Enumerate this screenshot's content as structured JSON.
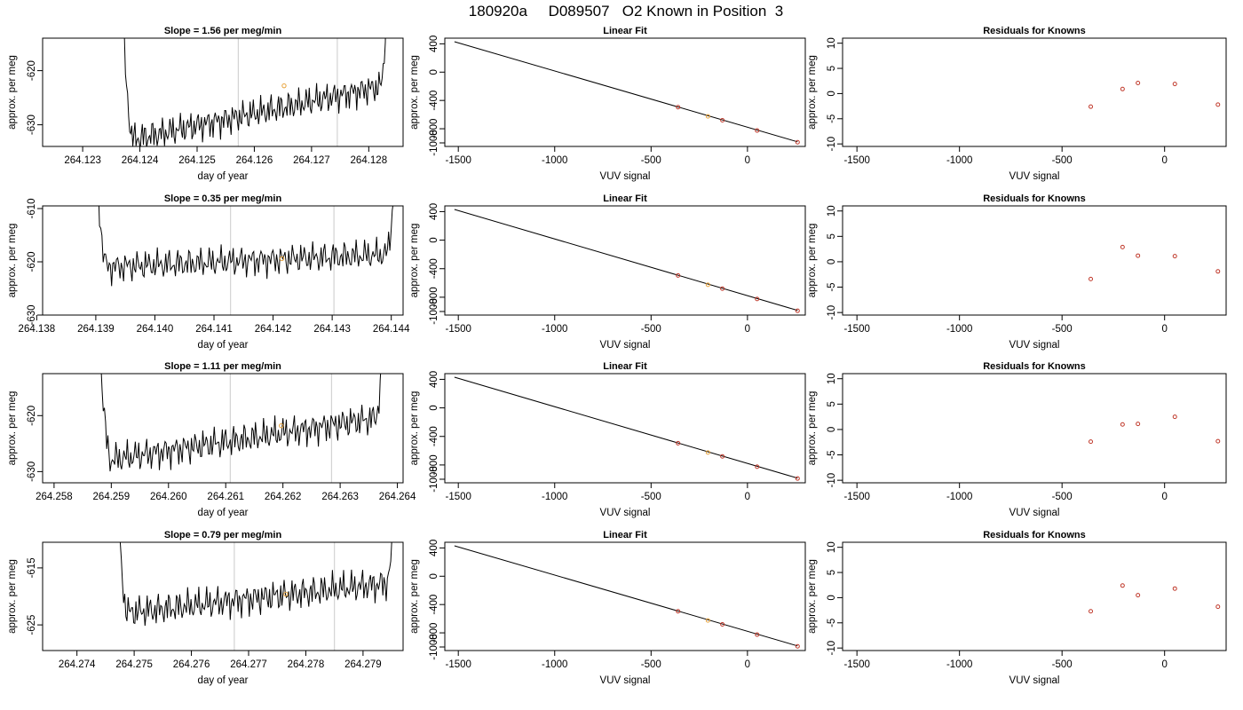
{
  "figure_title": "180920a     D089507   O2 Known in Position  3",
  "colors": {
    "line": "#000000",
    "vline": "#d3d3d3",
    "point": "#e8a33c",
    "fit_point": "#c0392b",
    "residual": "#c0392b"
  },
  "chart_data": [
    {
      "row": 1,
      "timeseries": {
        "type": "line",
        "title": "Slope =  1.56  per meg/min",
        "xlabel": "day of year",
        "ylabel": "approx. per meg",
        "xlim": [
          264.1223,
          264.1286
        ],
        "ylim": [
          -634,
          -614
        ],
        "xticks": [
          "264.123",
          "264.124",
          "264.125",
          "264.126",
          "264.127",
          "264.128"
        ],
        "xtick_values": [
          264.123,
          264.124,
          264.125,
          264.126,
          264.127,
          264.128
        ],
        "yticks": [
          "-630",
          "-620"
        ],
        "ytick_values": [
          -630,
          -620
        ],
        "data_start": 264.1236,
        "data_end": 264.1284,
        "flat_start": 264.1239,
        "flat_end": 264.1282,
        "center": -627.8,
        "slope_per_day": 2246.4,
        "vlines": [
          264.12572,
          264.12745
        ],
        "marker": {
          "x": 264.12652,
          "y": -622.8
        }
      },
      "fit": {
        "type": "line",
        "title": "Linear Fit",
        "xlabel": "VUV signal",
        "ylabel": "approx. per meg",
        "xlim": [
          -1570,
          300
        ],
        "ylim": [
          -1050,
          480
        ],
        "xticks": [
          "-1500",
          "-1000",
          "-500",
          "0"
        ],
        "xtick_values": [
          -1500,
          -1000,
          -500,
          0
        ],
        "yticks": [
          "-1000",
          "-800",
          "-400",
          "0",
          "400"
        ],
        "ytick_values": [
          -1000,
          -800,
          -400,
          0,
          400
        ],
        "line": {
          "x": [
            -1520,
            260
          ],
          "y": [
            430,
            -985
          ]
        },
        "points": [
          {
            "x": -360,
            "y": -495
          },
          {
            "x": -205,
            "y": -625,
            "highlight": true
          },
          {
            "x": -130,
            "y": -680
          },
          {
            "x": 50,
            "y": -825
          },
          {
            "x": 260,
            "y": -990
          }
        ]
      },
      "residuals": {
        "type": "scatter",
        "title": "Residuals for Knowns",
        "xlabel": "VUV signal",
        "ylabel": "approx. per meg",
        "xlim": [
          -1570,
          300
        ],
        "ylim": [
          -10.5,
          11
        ],
        "xticks": [
          "-1500",
          "-1000",
          "-500",
          "0"
        ],
        "xtick_values": [
          -1500,
          -1000,
          -500,
          0
        ],
        "yticks": [
          "-10",
          "-5",
          "0",
          "5",
          "10"
        ],
        "ytick_values": [
          -10,
          -5,
          0,
          5,
          10
        ],
        "x": [
          -360,
          -205,
          -130,
          50,
          260
        ],
        "y": [
          -2.6,
          0.9,
          2.1,
          1.9,
          -2.2
        ]
      }
    },
    {
      "row": 2,
      "timeseries": {
        "type": "line",
        "title": "Slope =  0.35  per meg/min",
        "xlabel": "day of year",
        "ylabel": "approx. per meg",
        "xlim": [
          264.1381,
          264.1442
        ],
        "ylim": [
          -630,
          -609.5
        ],
        "xticks": [
          "264.138",
          "264.139",
          "264.140",
          "264.141",
          "264.142",
          "264.143",
          "264.144"
        ],
        "xtick_values": [
          264.138,
          264.139,
          264.14,
          264.141,
          264.142,
          264.143,
          264.144
        ],
        "yticks": [
          "-630",
          "-620",
          "-610"
        ],
        "ytick_values": [
          -630,
          -620,
          -610
        ],
        "data_start": 264.1389,
        "data_end": 264.1442,
        "flat_start": 264.1392,
        "flat_end": 264.1439,
        "center": -619.8,
        "slope_per_day": 504,
        "vlines": [
          264.14128,
          264.14303
        ],
        "marker": {
          "x": 264.14215,
          "y": -619.4
        }
      },
      "fit": {
        "type": "line",
        "title": "Linear Fit",
        "xlabel": "VUV signal",
        "ylabel": "approx. per meg",
        "xlim": [
          -1570,
          300
        ],
        "ylim": [
          -1050,
          480
        ],
        "xticks": [
          "-1500",
          "-1000",
          "-500",
          "0"
        ],
        "xtick_values": [
          -1500,
          -1000,
          -500,
          0
        ],
        "yticks": [
          "-1000",
          "-800",
          "-400",
          "0",
          "400"
        ],
        "ytick_values": [
          -1000,
          -800,
          -400,
          0,
          400
        ],
        "line": {
          "x": [
            -1520,
            260
          ],
          "y": [
            430,
            -985
          ]
        },
        "points": [
          {
            "x": -360,
            "y": -495
          },
          {
            "x": -205,
            "y": -625,
            "highlight": true
          },
          {
            "x": -130,
            "y": -680
          },
          {
            "x": 50,
            "y": -825
          },
          {
            "x": 260,
            "y": -990
          }
        ]
      },
      "residuals": {
        "type": "scatter",
        "title": "Residuals for Knowns",
        "xlabel": "VUV signal",
        "ylabel": "approx. per meg",
        "xlim": [
          -1570,
          300
        ],
        "ylim": [
          -10.5,
          11
        ],
        "xticks": [
          "-1500",
          "-1000",
          "-500",
          "0"
        ],
        "xtick_values": [
          -1500,
          -1000,
          -500,
          0
        ],
        "yticks": [
          "-10",
          "-5",
          "0",
          "5",
          "10"
        ],
        "ytick_values": [
          -10,
          -5,
          0,
          5,
          10
        ],
        "x": [
          -360,
          -205,
          -130,
          50,
          260
        ],
        "y": [
          -3.4,
          2.9,
          1.2,
          1.1,
          -1.9
        ]
      }
    },
    {
      "row": 3,
      "timeseries": {
        "type": "line",
        "title": "Slope =  1.11  per meg/min",
        "xlabel": "day of year",
        "ylabel": "approx. per meg",
        "xlim": [
          264.2578,
          264.2641
        ],
        "ylim": [
          -632,
          -612.5
        ],
        "xticks": [
          "264.258",
          "264.259",
          "264.260",
          "264.261",
          "264.262",
          "264.263",
          "264.264"
        ],
        "xtick_values": [
          264.258,
          264.259,
          264.26,
          264.261,
          264.262,
          264.263,
          264.264
        ],
        "yticks": [
          "-630",
          "-620"
        ],
        "ytick_values": [
          -630,
          -620
        ],
        "data_start": 264.2587,
        "data_end": 264.2639,
        "flat_start": 264.259,
        "flat_end": 264.2636,
        "center": -624.2,
        "slope_per_day": 1598.4,
        "vlines": [
          264.26108,
          264.26285
        ],
        "marker": {
          "x": 264.26197,
          "y": -621.8
        }
      },
      "fit": {
        "type": "line",
        "title": "Linear Fit",
        "xlabel": "VUV signal",
        "ylabel": "approx. per meg",
        "xlim": [
          -1570,
          300
        ],
        "ylim": [
          -1050,
          480
        ],
        "xticks": [
          "-1500",
          "-1000",
          "-500",
          "0"
        ],
        "xtick_values": [
          -1500,
          -1000,
          -500,
          0
        ],
        "yticks": [
          "-1000",
          "-800",
          "-400",
          "0",
          "400"
        ],
        "ytick_values": [
          -1000,
          -800,
          -400,
          0,
          400
        ],
        "line": {
          "x": [
            -1520,
            260
          ],
          "y": [
            430,
            -985
          ]
        },
        "points": [
          {
            "x": -360,
            "y": -495
          },
          {
            "x": -205,
            "y": -625,
            "highlight": true
          },
          {
            "x": -130,
            "y": -680
          },
          {
            "x": 50,
            "y": -825
          },
          {
            "x": 260,
            "y": -990
          }
        ]
      },
      "residuals": {
        "type": "scatter",
        "title": "Residuals for Knowns",
        "xlabel": "VUV signal",
        "ylabel": "approx. per meg",
        "xlim": [
          -1570,
          300
        ],
        "ylim": [
          -10.5,
          11
        ],
        "xticks": [
          "-1500",
          "-1000",
          "-500",
          "0"
        ],
        "xtick_values": [
          -1500,
          -1000,
          -500,
          0
        ],
        "yticks": [
          "-10",
          "-5",
          "0",
          "5",
          "10"
        ],
        "ytick_values": [
          -10,
          -5,
          0,
          5,
          10
        ],
        "x": [
          -360,
          -205,
          -130,
          50,
          260
        ],
        "y": [
          -2.4,
          1.0,
          1.1,
          2.5,
          -2.3
        ]
      }
    },
    {
      "row": 4,
      "timeseries": {
        "type": "line",
        "title": "Slope =  0.79  per meg/min",
        "xlabel": "day of year",
        "ylabel": "approx. per meg",
        "xlim": [
          264.2734,
          264.2797
        ],
        "ylim": [
          -629.5,
          -610.5
        ],
        "xticks": [
          "264.274",
          "264.275",
          "264.276",
          "264.277",
          "264.278",
          "264.279"
        ],
        "xtick_values": [
          264.274,
          264.275,
          264.276,
          264.277,
          264.278,
          264.279
        ],
        "yticks": [
          "-625",
          "-615"
        ],
        "ytick_values": [
          -625,
          -615
        ],
        "data_start": 264.2746,
        "data_end": 264.2797,
        "flat_start": 264.2749,
        "flat_end": 264.2794,
        "center": -620.3,
        "slope_per_day": 1137.6,
        "vlines": [
          264.27675,
          264.2785
        ],
        "marker": {
          "x": 264.27765,
          "y": -619.6
        }
      },
      "fit": {
        "type": "line",
        "title": "Linear Fit",
        "xlabel": "VUV signal",
        "ylabel": "approx. per meg",
        "xlim": [
          -1570,
          300
        ],
        "ylim": [
          -1050,
          480
        ],
        "xticks": [
          "-1500",
          "-1000",
          "-500",
          "0"
        ],
        "xtick_values": [
          -1500,
          -1000,
          -500,
          0
        ],
        "yticks": [
          "-1000",
          "-800",
          "-400",
          "0",
          "400"
        ],
        "ytick_values": [
          -1000,
          -800,
          -400,
          0,
          400
        ],
        "line": {
          "x": [
            -1520,
            260
          ],
          "y": [
            430,
            -985
          ]
        },
        "points": [
          {
            "x": -360,
            "y": -495
          },
          {
            "x": -205,
            "y": -625,
            "highlight": true
          },
          {
            "x": -130,
            "y": -680
          },
          {
            "x": 50,
            "y": -825
          },
          {
            "x": 260,
            "y": -990
          }
        ]
      },
      "residuals": {
        "type": "scatter",
        "title": "Residuals for Knowns",
        "xlabel": "VUV signal",
        "ylabel": "approx. per meg",
        "xlim": [
          -1570,
          300
        ],
        "ylim": [
          -10.5,
          11
        ],
        "xticks": [
          "-1500",
          "-1000",
          "-500",
          "0"
        ],
        "xtick_values": [
          -1500,
          -1000,
          -500,
          0
        ],
        "yticks": [
          "-10",
          "-5",
          "0",
          "5",
          "10"
        ],
        "ytick_values": [
          -10,
          -5,
          0,
          5,
          10
        ],
        "x": [
          -360,
          -205,
          -130,
          50,
          260
        ],
        "y": [
          -2.7,
          2.4,
          0.5,
          1.8,
          -1.8
        ]
      }
    }
  ]
}
